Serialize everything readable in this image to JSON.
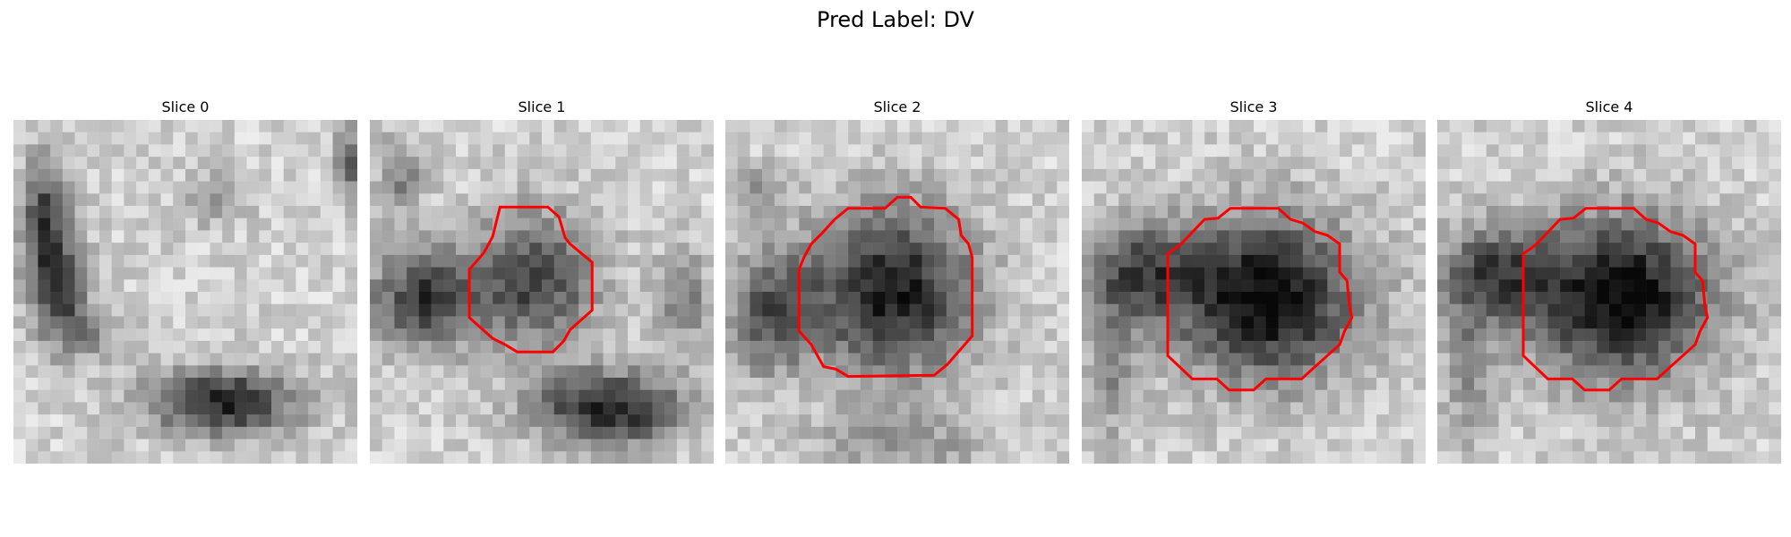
{
  "figure": {
    "title": "Pred Label: DV",
    "contour_color": "#ff0000"
  },
  "slices": [
    {
      "label": "Slice 0",
      "has_contour": false
    },
    {
      "label": "Slice 1",
      "has_contour": true
    },
    {
      "label": "Slice 2",
      "has_contour": true
    },
    {
      "label": "Slice 3",
      "has_contour": true
    },
    {
      "label": "Slice 4",
      "has_contour": true
    }
  ]
}
